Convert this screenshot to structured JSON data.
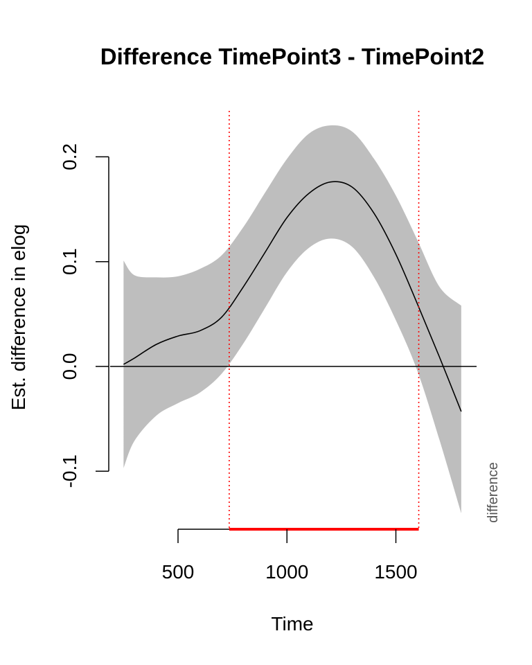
{
  "chart_data": {
    "type": "line",
    "title": "Difference TimePoint3 - TimePoint2",
    "xlabel": "Time",
    "ylabel": "Est. difference in elog",
    "side_label": "difference",
    "xlim": [
      250,
      1800
    ],
    "ylim": [
      -0.1,
      0.2
    ],
    "x_ticks": [
      500,
      1000,
      1500
    ],
    "y_ticks": [
      -0.1,
      0.0,
      0.1,
      0.2
    ],
    "y_tick_labels": [
      "-0.1",
      "0.0",
      "0.1",
      "0.2"
    ],
    "significant_interval": [
      735,
      1605
    ],
    "colors": {
      "band": "#bebebe",
      "line": "#000000",
      "marker": "#ff0000"
    },
    "series": [
      {
        "x": [
          250,
          300,
          400,
          500,
          600,
          700,
          800,
          900,
          1000,
          1100,
          1200,
          1300,
          1400,
          1500,
          1600,
          1700,
          1800
        ],
        "values": [
          0.002,
          0.008,
          0.021,
          0.029,
          0.034,
          0.047,
          0.076,
          0.109,
          0.142,
          0.165,
          0.176,
          0.171,
          0.146,
          0.107,
          0.059,
          0.009,
          -0.043
        ],
        "lower": [
          -0.097,
          -0.071,
          -0.047,
          -0.035,
          -0.025,
          -0.007,
          0.022,
          0.056,
          0.09,
          0.113,
          0.122,
          0.114,
          0.085,
          0.044,
          -0.005,
          -0.07,
          -0.14
        ],
        "upper": [
          0.101,
          0.087,
          0.085,
          0.086,
          0.093,
          0.106,
          0.133,
          0.166,
          0.198,
          0.222,
          0.23,
          0.224,
          0.198,
          0.163,
          0.12,
          0.076,
          0.058
        ]
      }
    ]
  }
}
